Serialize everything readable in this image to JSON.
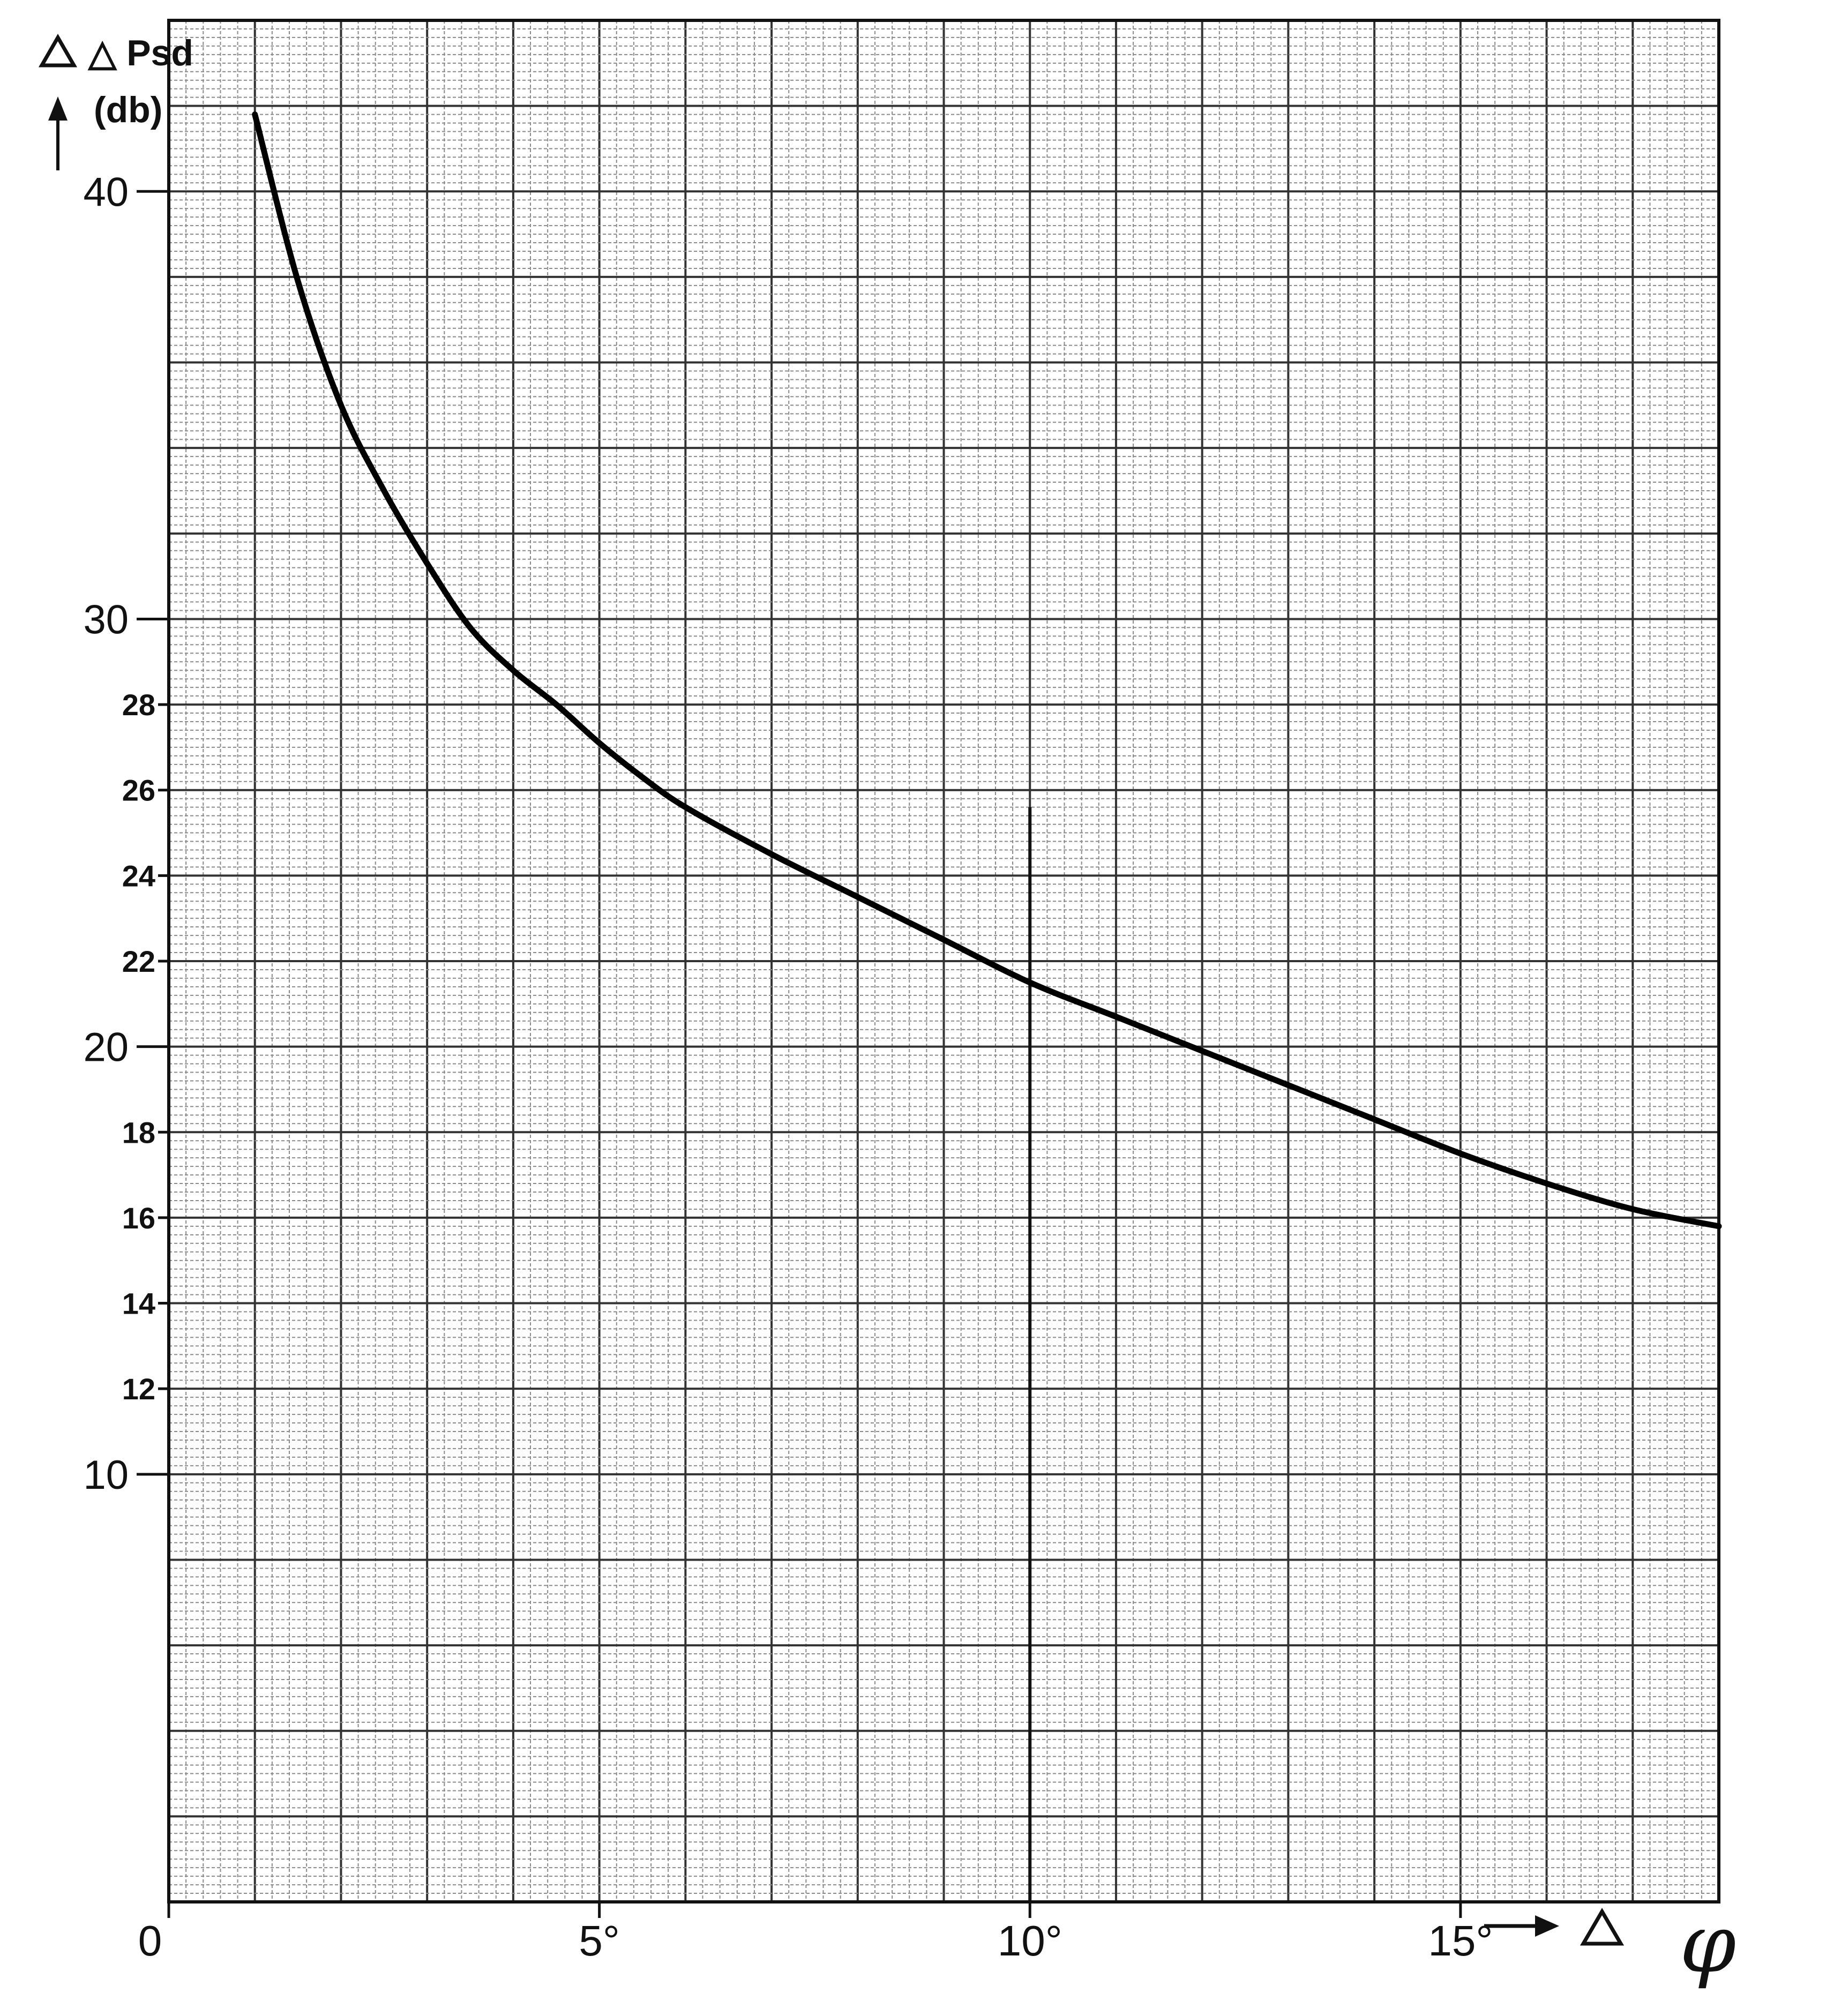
{
  "chart_data": {
    "type": "line",
    "ylabel_symbol": "△ Psd",
    "ylabel_unit": "(db)",
    "xlabel_symbol": "△",
    "xlabel_var": "φ",
    "x_ticks": [
      {
        "value": 0,
        "label": "0"
      },
      {
        "value": 5,
        "label": "5°"
      },
      {
        "value": 10,
        "label": "10°"
      },
      {
        "value": 15,
        "label": "15°"
      }
    ],
    "y_ticks_major": [
      {
        "value": 10,
        "label": "10"
      },
      {
        "value": 20,
        "label": "20"
      },
      {
        "value": 30,
        "label": "30"
      },
      {
        "value": 40,
        "label": "40"
      }
    ],
    "y_ticks_minor": [
      {
        "value": 12,
        "label": "12"
      },
      {
        "value": 14,
        "label": "14"
      },
      {
        "value": 16,
        "label": "16"
      },
      {
        "value": 18,
        "label": "18"
      },
      {
        "value": 22,
        "label": "22"
      },
      {
        "value": 24,
        "label": "24"
      },
      {
        "value": 26,
        "label": "26"
      },
      {
        "value": 28,
        "label": "28"
      }
    ],
    "xlim": [
      0,
      18
    ],
    "ylim": [
      0,
      44
    ],
    "grid": true,
    "series": [
      {
        "points": [
          [
            1.0,
            41.8
          ],
          [
            1.5,
            37.9
          ],
          [
            2.0,
            35.0
          ],
          [
            2.5,
            33.0
          ],
          [
            3.0,
            31.3
          ],
          [
            3.5,
            29.8
          ],
          [
            4.0,
            28.8
          ],
          [
            4.5,
            28.0
          ],
          [
            5.0,
            27.1
          ],
          [
            5.5,
            26.3
          ],
          [
            6.0,
            25.6
          ],
          [
            7.0,
            24.5
          ],
          [
            8.0,
            23.5
          ],
          [
            9.0,
            22.5
          ],
          [
            10.0,
            21.5
          ],
          [
            11.0,
            20.7
          ],
          [
            12.0,
            19.9
          ],
          [
            13.0,
            19.1
          ],
          [
            14.0,
            18.3
          ],
          [
            15.0,
            17.5
          ],
          [
            16.0,
            16.8
          ],
          [
            17.0,
            16.2
          ],
          [
            18.0,
            15.8
          ]
        ]
      }
    ]
  }
}
